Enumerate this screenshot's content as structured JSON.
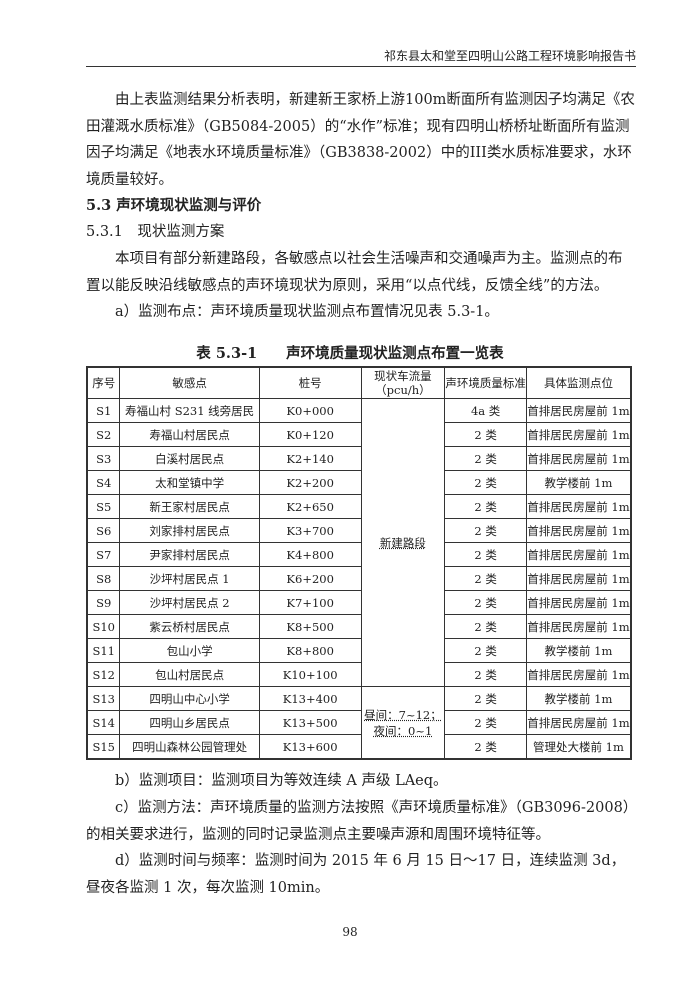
{
  "header": "祁东县太和堂至四明山公路工程环境影响报告书",
  "para1": "由上表监测结果分析表明，新建新王家桥上游100m断面所有监测因子均满足《农田灌溉水质标准》（GB5084-2005）的“水作”标准；现有四明山桥桥址断面所有监测因子均满足《地表水环境质量标准》（GB3838-2002）中的III类水质标准要求，水环境质量较好。",
  "h1": "5.3 声环境现状监测与评价",
  "h2": "5.3.1　现状监测方案",
  "para2": "本项目有部分新建路段，各敏感点以社会生活噪声和交通噪声为主。监测点的布置以能反映沿线敏感点的声环境现状为原则，采用“以点代线，反馈全线”的方法。",
  "para3": "a）监测布点：声环境质量现状监测点布置情况见表 5.3-1。",
  "table": {
    "caption": "表 5.3-1　　声环境质量现状监测点布置一览表",
    "headers": [
      "序号",
      "敏感点",
      "桩号",
      "现状车流量（pcu/h）",
      "声环境质量标准",
      "具体监测点位"
    ],
    "rows": [
      [
        "S1",
        "寿福山村 S231 线旁居民",
        "K0+000",
        "4a 类",
        "首排居民房屋前 1m"
      ],
      [
        "S2",
        "寿福山村居民点",
        "K0+120",
        "2 类",
        "首排居民房屋前 1m"
      ],
      [
        "S3",
        "白溪村居民点",
        "K2+140",
        "2 类",
        "首排居民房屋前 1m"
      ],
      [
        "S4",
        "太和堂镇中学",
        "K2+200",
        "2 类",
        "教学楼前 1m"
      ],
      [
        "S5",
        "新王家村居民点",
        "K2+650",
        "2 类",
        "首排居民房屋前 1m"
      ],
      [
        "S6",
        "刘家排村居民点",
        "K3+700",
        "2 类",
        "首排居民房屋前 1m"
      ],
      [
        "S7",
        "尹家排村居民点",
        "K4+800",
        "2 类",
        "首排居民房屋前 1m"
      ],
      [
        "S8",
        "沙坪村居民点 1",
        "K6+200",
        "2 类",
        "首排居民房屋前 1m"
      ],
      [
        "S9",
        "沙坪村居民点 2",
        "K7+100",
        "2 类",
        "首排居民房屋前 1m"
      ],
      [
        "S10",
        "紫云桥村居民点",
        "K8+500",
        "2 类",
        "首排居民房屋前 1m"
      ],
      [
        "S11",
        "包山小学",
        "K8+800",
        "2 类",
        "教学楼前 1m"
      ],
      [
        "S12",
        "包山村居民点",
        "K10+100",
        "2 类",
        "首排居民房屋前 1m"
      ],
      [
        "S13",
        "四明山中心小学",
        "K13+400",
        "2 类",
        "教学楼前 1m"
      ],
      [
        "S14",
        "四明山乡居民点",
        "K13+500",
        "2 类",
        "首排居民房屋前 1m"
      ],
      [
        "S15",
        "四明山森林公园管理处",
        "K13+600",
        "2 类",
        "管理处大楼前 1m"
      ]
    ],
    "flow_new": "新建路段",
    "flow_existing": "昼间：7~12；夜间：0~1"
  },
  "para4": "b）监测项目：监测项目为等效连续 A 声级 LAeq。",
  "para5": "c）监测方法：声环境质量的监测方法按照《声环境质量标准》（GB3096-2008）的相关要求进行，监测的同时记录监测点主要噪声源和周围环境特征等。",
  "para6": "d）监测时间与频率：监测时间为 2015 年 6 月 15 日～17 日，连续监测 3d，昼夜各监测 1 次，每次监测 10min。",
  "page_number": "98"
}
